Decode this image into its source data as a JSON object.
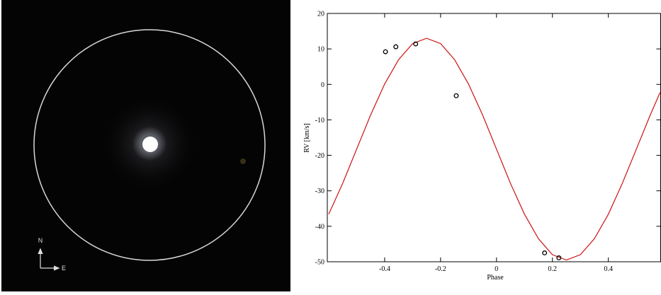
{
  "image": {
    "north_label": "N",
    "east_label": "E"
  },
  "chart_data": {
    "type": "scatter",
    "xlabel": "Phase",
    "ylabel": "RV [km/s]",
    "xlim": [
      -0.605,
      0.587
    ],
    "ylim": [
      -50,
      20
    ],
    "xticks": [
      -0.4,
      -0.2,
      0,
      0.2,
      0.4
    ],
    "yticks": [
      -50,
      -40,
      -30,
      -20,
      -10,
      0,
      10,
      20
    ],
    "points": {
      "x": [
        -0.397,
        -0.36,
        -0.289,
        -0.144,
        0.172,
        0.223
      ],
      "y": [
        9.2,
        10.6,
        11.4,
        -3.2,
        -47.5,
        -48.9
      ],
      "color": "#000000"
    },
    "curve": {
      "color": "#cc1111",
      "x": [
        -0.6,
        -0.55,
        -0.5,
        -0.45,
        -0.4,
        -0.35,
        -0.3,
        -0.25,
        -0.2,
        -0.15,
        -0.1,
        -0.05,
        0,
        0.05,
        0.1,
        0.15,
        0.2,
        0.25,
        0.3,
        0.35,
        0.4,
        0.45,
        0.5,
        0.55,
        0.585
      ],
      "y": [
        -36.6,
        -27.9,
        -18.25,
        -8.6,
        0.1,
        7.0,
        11.5,
        13.0,
        11.5,
        7.0,
        0.1,
        -8.6,
        -18.25,
        -27.9,
        -36.6,
        -43.5,
        -48.0,
        -49.5,
        -48.0,
        -43.5,
        -36.6,
        -27.9,
        -18.25,
        -8.6,
        -2.3
      ]
    }
  }
}
